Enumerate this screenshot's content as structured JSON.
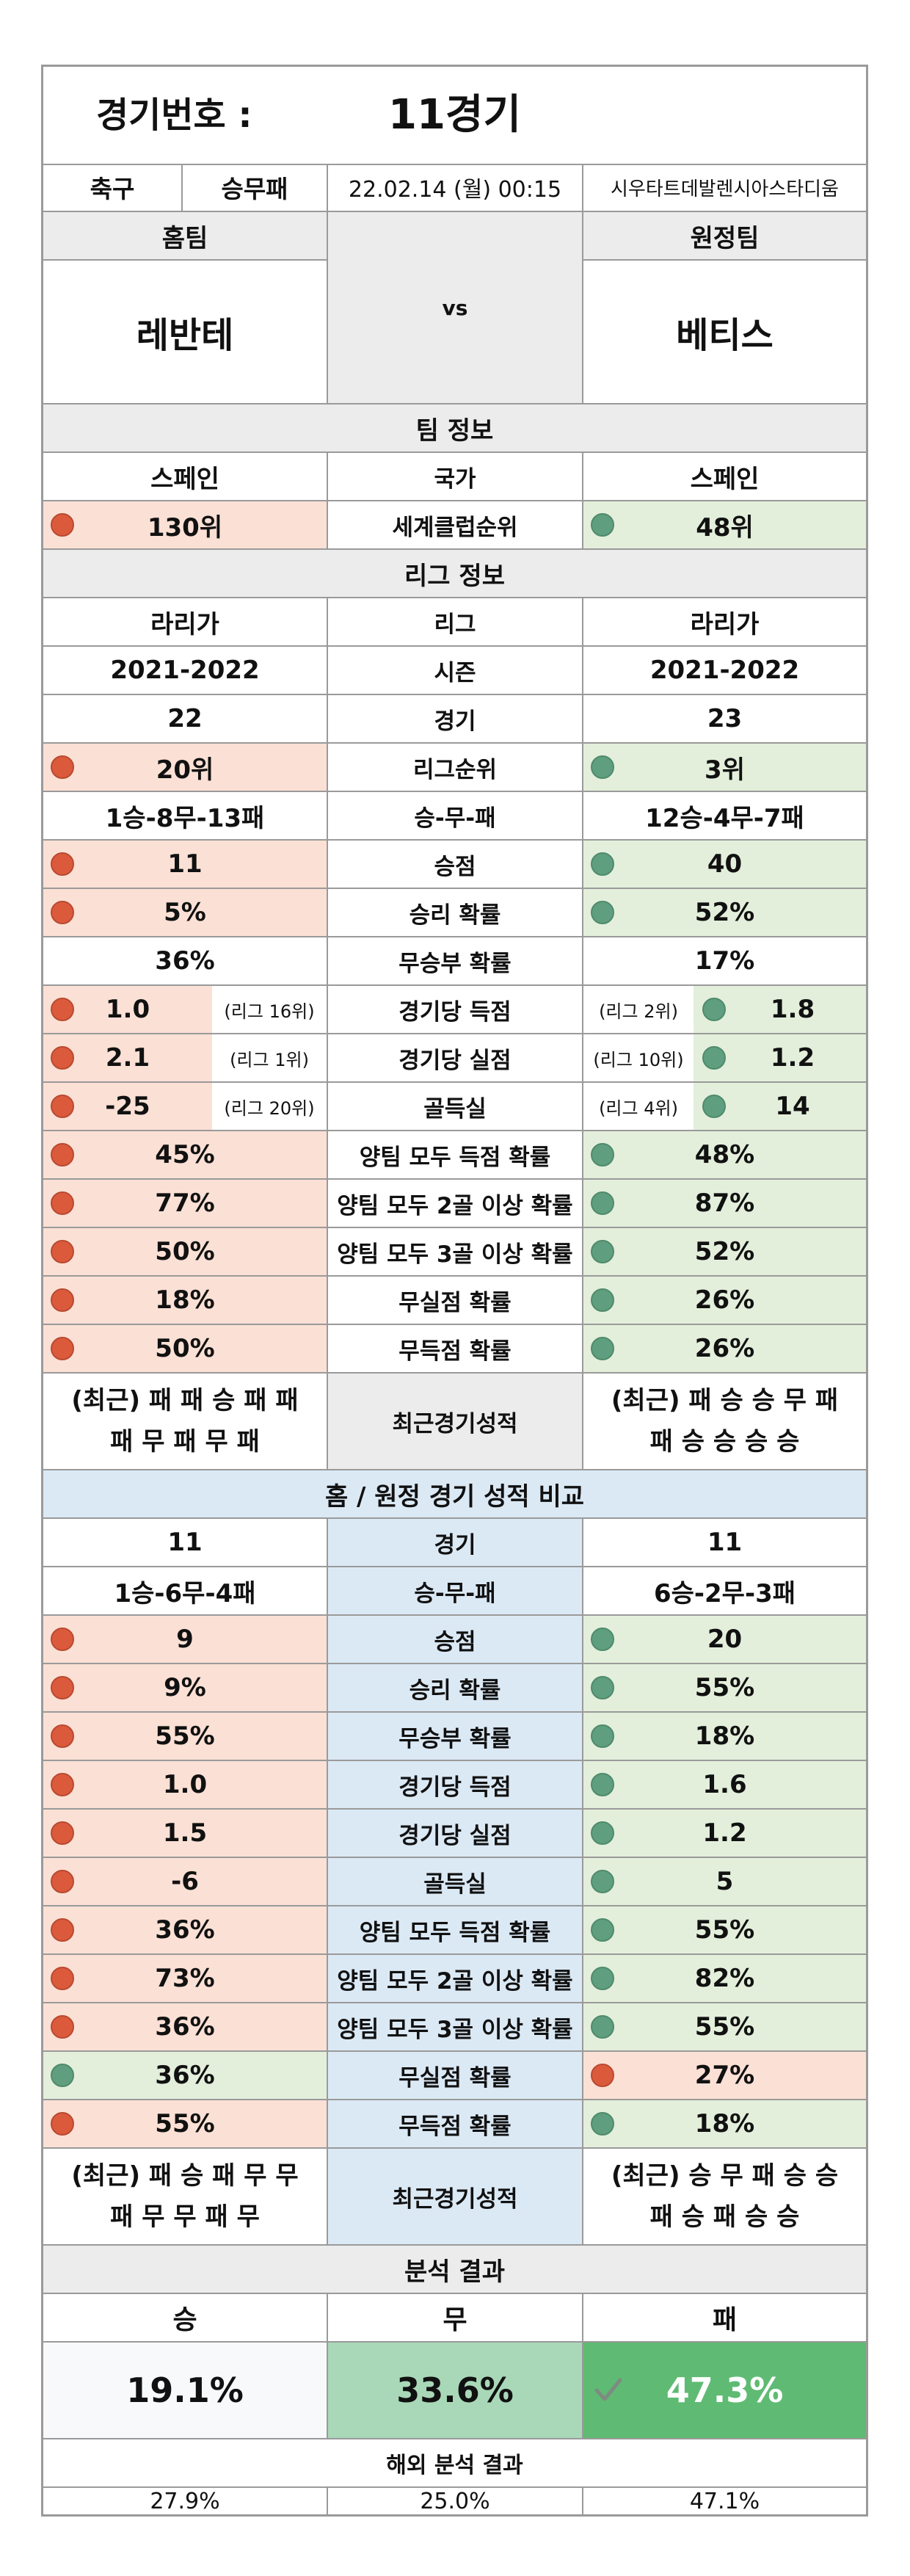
{
  "title": {
    "label": "경기번호 :",
    "value": "11경기"
  },
  "meta": {
    "sport": "축구",
    "type": "승무패",
    "datetime": "22.02.14 (월) 00:15",
    "stadium": "시우타트데발렌시아스타디움"
  },
  "teams": {
    "home_label": "홈팀",
    "away_label": "원정팀",
    "home": "레반테",
    "vs": "vs",
    "away": "베티스"
  },
  "team_info": {
    "title": "팀 정보",
    "country": {
      "home": "스페인",
      "label": "국가",
      "away": "스페인"
    },
    "club_rank": {
      "home": "130위",
      "label": "세계클럽순위",
      "away": "48위"
    }
  },
  "league_info": {
    "title": "리그 정보",
    "league": {
      "home": "라리가",
      "label": "리그",
      "away": "라리가"
    },
    "season": {
      "home": "2021-2022",
      "label": "시즌",
      "away": "2021-2022"
    },
    "games": {
      "home": "22",
      "label": "경기",
      "away": "23"
    },
    "rank": {
      "home": "20위",
      "label": "리그순위",
      "away": "3위"
    },
    "wdl": {
      "home": "1승-8무-13패",
      "label": "승-무-패",
      "away": "12승-4무-7패"
    },
    "points": {
      "home": "11",
      "label": "승점",
      "away": "40"
    },
    "win_prob": {
      "home": "5%",
      "label": "승리 확률",
      "away": "52%"
    },
    "nowin_prob": {
      "home": "36%",
      "label": "무승부 확률",
      "away": "17%"
    },
    "gf": {
      "home": "1.0",
      "home_rank": "(리그 16위)",
      "label": "경기당 득점",
      "away_rank": "(리그 2위)",
      "away": "1.8"
    },
    "ga": {
      "home": "2.1",
      "home_rank": "(리그 1위)",
      "label": "경기당 실점",
      "away_rank": "(리그 10위)",
      "away": "1.2"
    },
    "gd": {
      "home": "-25",
      "home_rank": "(리그 20위)",
      "label": "골득실",
      "away_rank": "(리그 4위)",
      "away": "14"
    },
    "btts": {
      "home": "45%",
      "label": "양팀 모두 득점 확률",
      "away": "48%"
    },
    "btts2": {
      "home": "77%",
      "label": "양팀 모두 2골 이상 확률",
      "away": "87%"
    },
    "btts3": {
      "home": "50%",
      "label": "양팀 모두 3골 이상 확률",
      "away": "52%"
    },
    "clean": {
      "home": "18%",
      "label": "무실점 확률",
      "away": "26%"
    },
    "noscore": {
      "home": "50%",
      "label": "무득점 확률",
      "away": "26%"
    },
    "recent": {
      "home_1": "(최근) 패 패 승 패 패",
      "home_2": "패 무 패 무 패",
      "label": "최근경기성적",
      "away_1": "(최근) 패 승 승 무 패",
      "away_2": "패 승 승 승 승"
    }
  },
  "homeaway": {
    "title": "홈 / 원정 경기 성적 비교",
    "games": {
      "home": "11",
      "label": "경기",
      "away": "11"
    },
    "wdl": {
      "home": "1승-6무-4패",
      "label": "승-무-패",
      "away": "6승-2무-3패"
    },
    "points": {
      "home": "9",
      "label": "승점",
      "away": "20"
    },
    "win_prob": {
      "home": "9%",
      "label": "승리 확률",
      "away": "55%"
    },
    "nowin_prob": {
      "home": "55%",
      "label": "무승부 확률",
      "away": "18%"
    },
    "gf": {
      "home": "1.0",
      "label": "경기당 득점",
      "away": "1.6"
    },
    "ga": {
      "home": "1.5",
      "label": "경기당 실점",
      "away": "1.2"
    },
    "gd": {
      "home": "-6",
      "label": "골득실",
      "away": "5"
    },
    "btts": {
      "home": "36%",
      "label": "양팀 모두 득점 확률",
      "away": "55%"
    },
    "btts2": {
      "home": "73%",
      "label": "양팀 모두 2골 이상 확률",
      "away": "82%"
    },
    "btts3": {
      "home": "36%",
      "label": "양팀 모두 3골 이상 확률",
      "away": "55%"
    },
    "clean": {
      "home": "36%",
      "label": "무실점 확률",
      "away": "27%"
    },
    "noscore": {
      "home": "55%",
      "label": "무득점 확률",
      "away": "18%"
    },
    "recent": {
      "home_1": "(최근) 패 승 패 무 무",
      "home_2": "패 무 무 패 무",
      "label": "최근경기성적",
      "away_1": "(최근) 승 무 패 승 승",
      "away_2": "패 승 패 승 승"
    }
  },
  "analysis": {
    "title": "분석 결과",
    "win_label": "승",
    "draw_label": "무",
    "loss_label": "패",
    "win": "19.1%",
    "draw": "33.6%",
    "loss": "47.3%",
    "overseas_title": "해외 분석 결과",
    "o_win": "27.9%",
    "o_draw": "25.0%",
    "o_loss": "47.1%"
  },
  "colors": {
    "home_fill": "#fbe0d5",
    "away_fill": "#e3efdb",
    "red_dot": "#dc5a3c",
    "green_dot": "#5f9f7f",
    "draw_fill": "#a9d8b8",
    "loss_fill": "#5fbb73",
    "section_blue": "#dbe9f5"
  },
  "icons": {
    "check": "check-icon"
  }
}
